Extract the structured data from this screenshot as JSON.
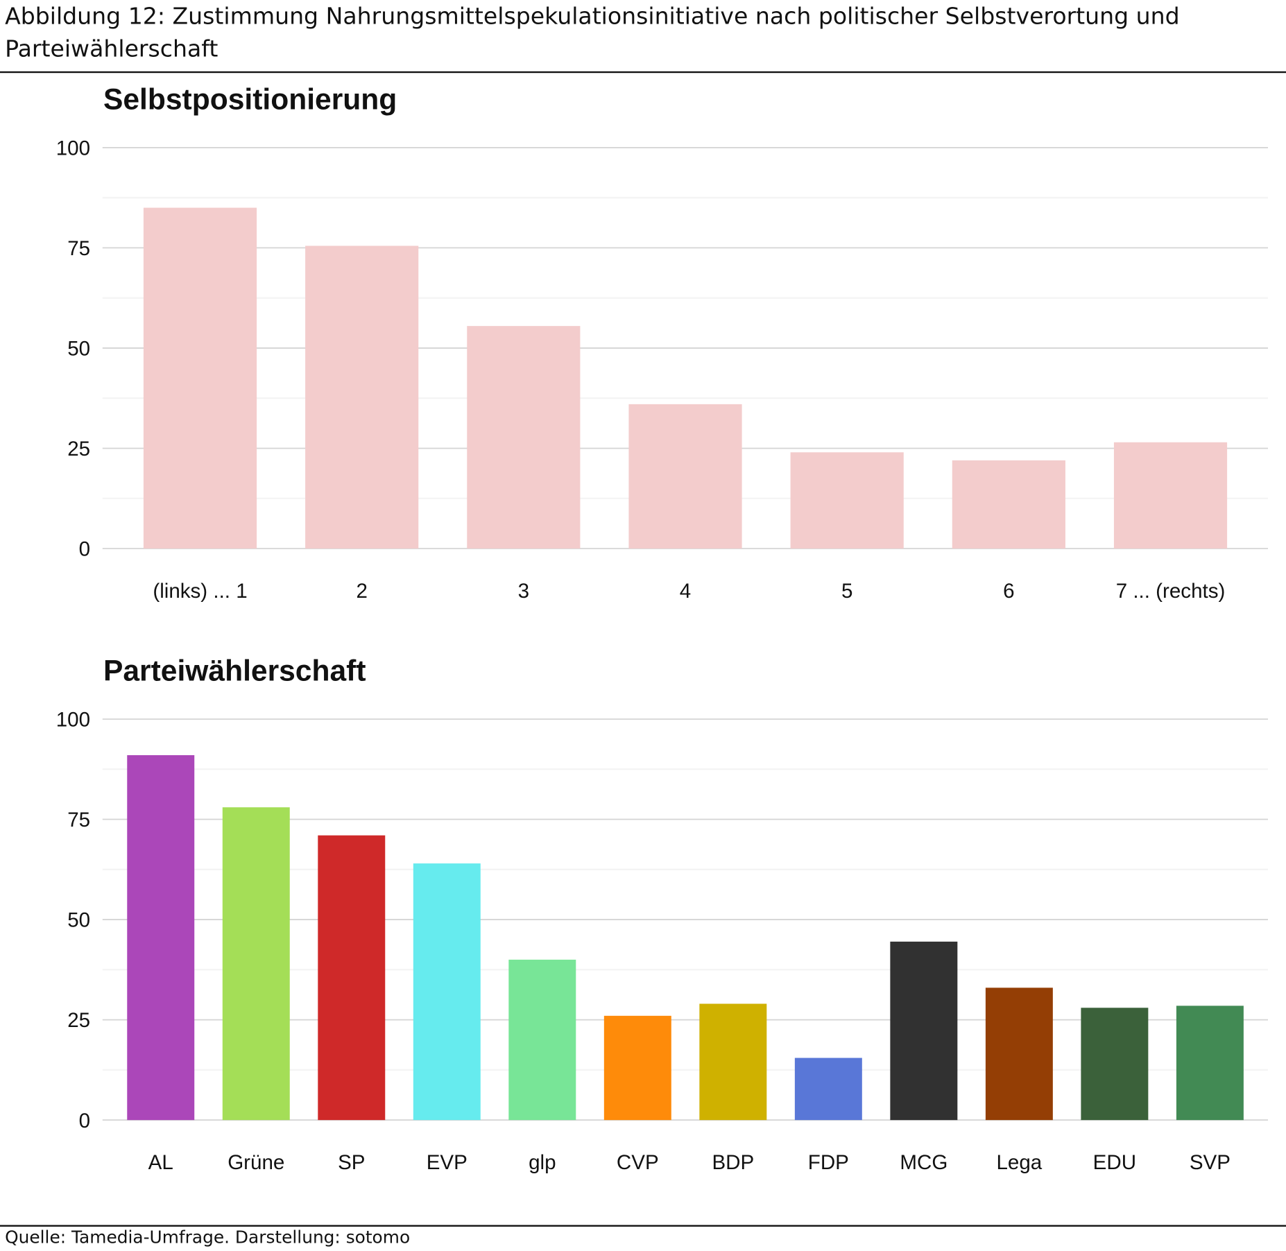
{
  "figure_title": "Abbildung 12: Zustimmung Nahrungsmittelspekulationsinitiative nach politischer Selbstverortung und Parteiwählerschaft",
  "source": "Quelle: Tamedia-Umfrage. Darstellung: sotomo",
  "chart_data": [
    {
      "type": "bar",
      "title": "Selbstpositionierung",
      "categories": [
        "(links) ... 1",
        "2",
        "3",
        "4",
        "5",
        "6",
        "7 ... (rechts)"
      ],
      "values": [
        85,
        75.5,
        55.5,
        36,
        24,
        22,
        26.5
      ],
      "colors": [
        "#f3cccc",
        "#f3cccc",
        "#f3cccc",
        "#f3cccc",
        "#f3cccc",
        "#f3cccc",
        "#f3cccc"
      ],
      "ylim": [
        0,
        100
      ],
      "yticks": [
        "0",
        "25",
        "50",
        "75",
        "100"
      ],
      "grid": true,
      "xlabel": "",
      "ylabel": ""
    },
    {
      "type": "bar",
      "title": "Parteiwählerschaft",
      "categories": [
        "AL",
        "Grüne",
        "SP",
        "EVP",
        "glp",
        "CVP",
        "BDP",
        "FDP",
        "MCG",
        "Lega",
        "EDU",
        "SVP"
      ],
      "values": [
        91,
        78,
        71,
        64,
        40,
        26,
        29,
        15.5,
        44.5,
        33,
        28,
        28.5
      ],
      "colors": [
        "#ab47b9",
        "#a4de57",
        "#cf2929",
        "#66ebee",
        "#78e597",
        "#fe8b0a",
        "#cfb100",
        "#5977d7",
        "#313131",
        "#943e05",
        "#3b613a",
        "#428a54"
      ],
      "ylim": [
        0,
        100
      ],
      "yticks": [
        "0",
        "25",
        "50",
        "75",
        "100"
      ],
      "grid": true,
      "xlabel": "",
      "ylabel": ""
    }
  ]
}
